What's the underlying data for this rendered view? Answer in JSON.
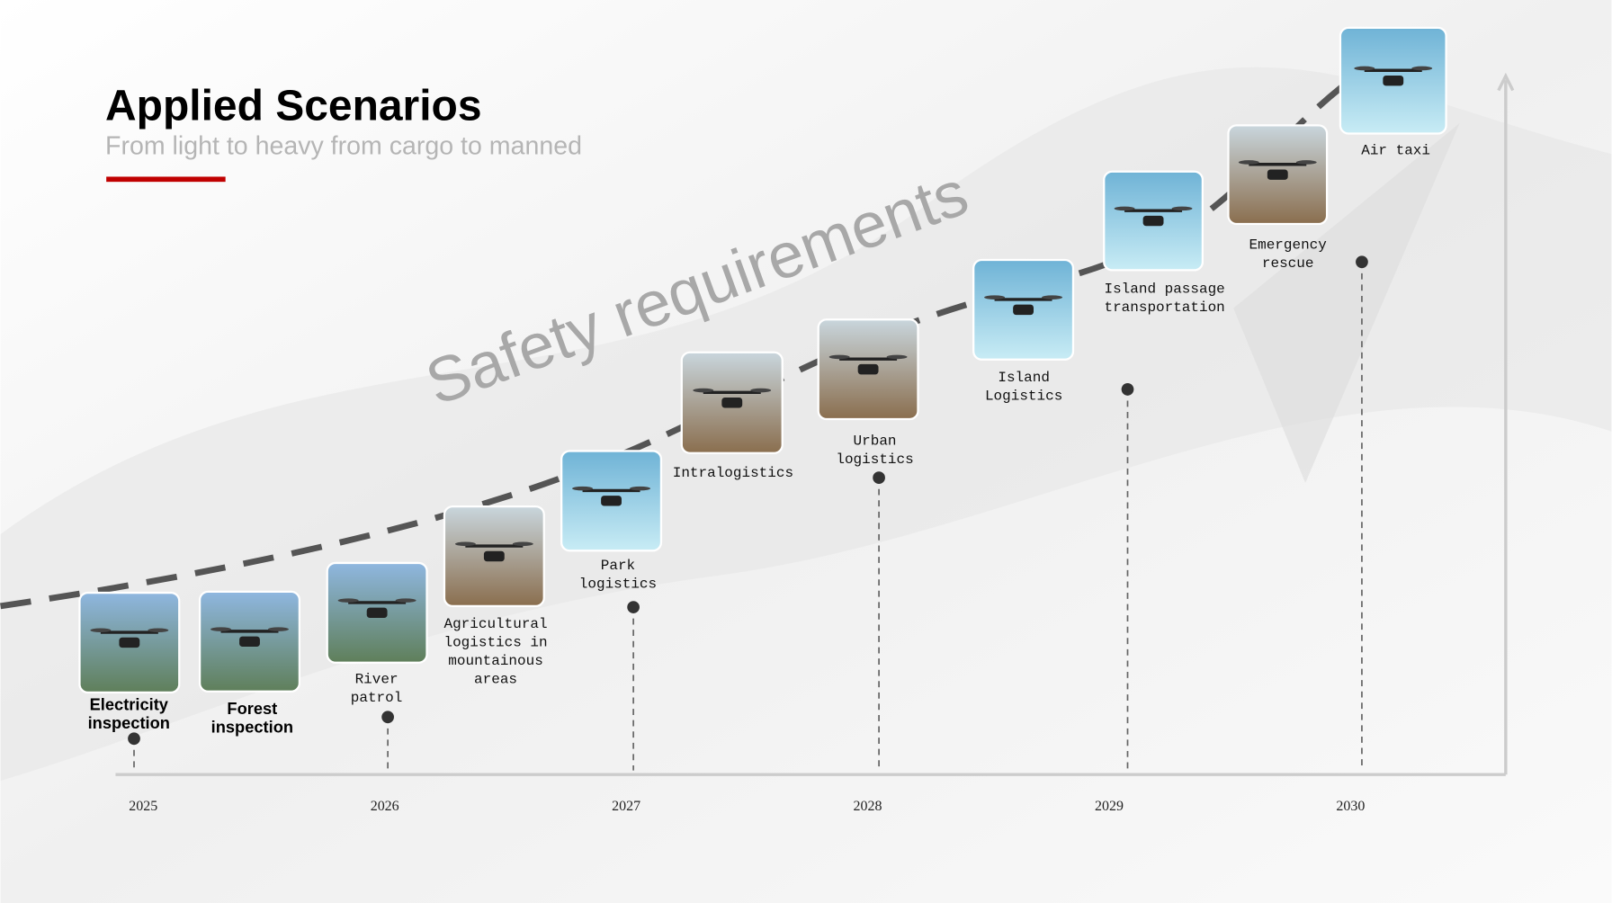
{
  "header": {
    "title": "Applied Scenarios",
    "subtitle": "From light to heavy from cargo to manned"
  },
  "watermark": "Safety requirements",
  "years": [
    "2025",
    "2026",
    "2027",
    "2028",
    "2029",
    "2030"
  ],
  "scenarios": [
    {
      "label": [
        "Electricity",
        "inspection"
      ]
    },
    {
      "label": [
        "Forest",
        "inspection"
      ]
    },
    {
      "label": [
        "River",
        "patrol"
      ]
    },
    {
      "label": [
        "Agricultural",
        "logistics in",
        "mountainous",
        "areas"
      ]
    },
    {
      "label": [
        "Park",
        "logistics"
      ]
    },
    {
      "label": [
        "Intralogistics"
      ]
    },
    {
      "label": [
        "Urban",
        "logistics"
      ]
    },
    {
      "label": [
        "Island",
        "Logistics"
      ]
    },
    {
      "label": [
        "Island passage",
        "transportation"
      ]
    },
    {
      "label": [
        "Emergency",
        "rescue"
      ]
    },
    {
      "label": [
        "Air taxi"
      ]
    }
  ]
}
